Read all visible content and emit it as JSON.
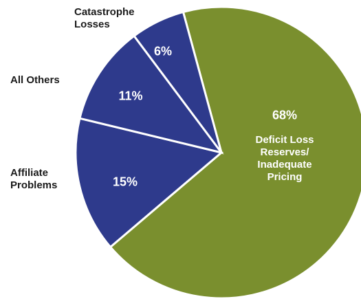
{
  "chart_data": {
    "type": "pie",
    "categories": [
      "Deficit Loss Reserves/ Inadequate Pricing",
      "Affiliate Problems",
      "All Others",
      "Catastrophe Losses"
    ],
    "values": [
      68,
      15,
      11,
      6
    ],
    "value_labels": [
      "68%",
      "15%",
      "11%",
      "6%"
    ],
    "colors": [
      "#7a8f2e",
      "#2e3a8c",
      "#2e3a8c",
      "#2e3a8c"
    ]
  }
}
